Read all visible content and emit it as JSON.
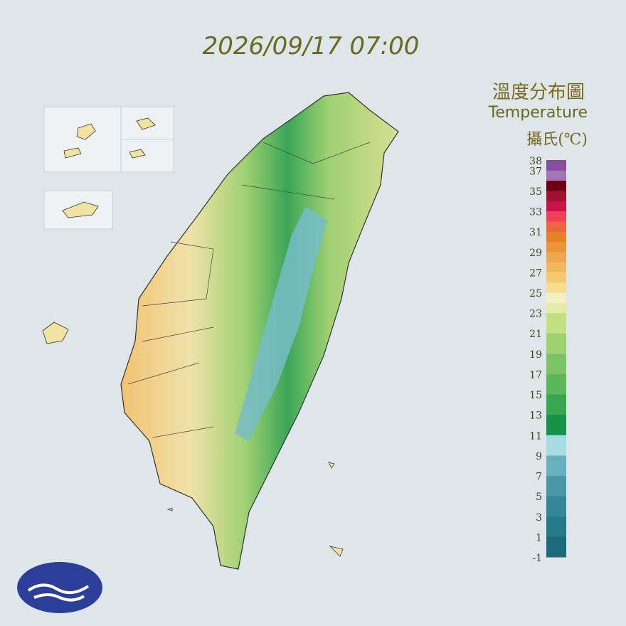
{
  "header": {
    "timestamp": "2026/09/17 07:00"
  },
  "legend": {
    "title": "溫度分布圖",
    "subtitle": "Temperature",
    "unit": "攝氏(℃)",
    "ticks": [
      38,
      37,
      35,
      33,
      31,
      29,
      27,
      25,
      23,
      21,
      19,
      17,
      15,
      13,
      11,
      9,
      7,
      5,
      3,
      1,
      -1
    ],
    "colors": [
      "#1d6a7a",
      "#1d6a7a",
      "#277888",
      "#277888",
      "#338796",
      "#338796",
      "#4897a6",
      "#4897a6",
      "#66b0bd",
      "#66b0bd",
      "#a6dde3",
      "#a6dde3",
      "#17924a",
      "#17924a",
      "#38a552",
      "#38a552",
      "#5bb65c",
      "#5bb65c",
      "#7cc467",
      "#7cc467",
      "#9dd172",
      "#9dd172",
      "#c2df80",
      "#c2df80",
      "#e4ecaa",
      "#f3efc4",
      "#f6dc8c",
      "#f4cc70",
      "#f1b85c",
      "#eea64a",
      "#eb9438",
      "#e7802a",
      "#ec6440",
      "#f2405a",
      "#c81446",
      "#a01030",
      "#6a0010",
      "#a374b4",
      "#8a4ea0"
    ]
  }
}
